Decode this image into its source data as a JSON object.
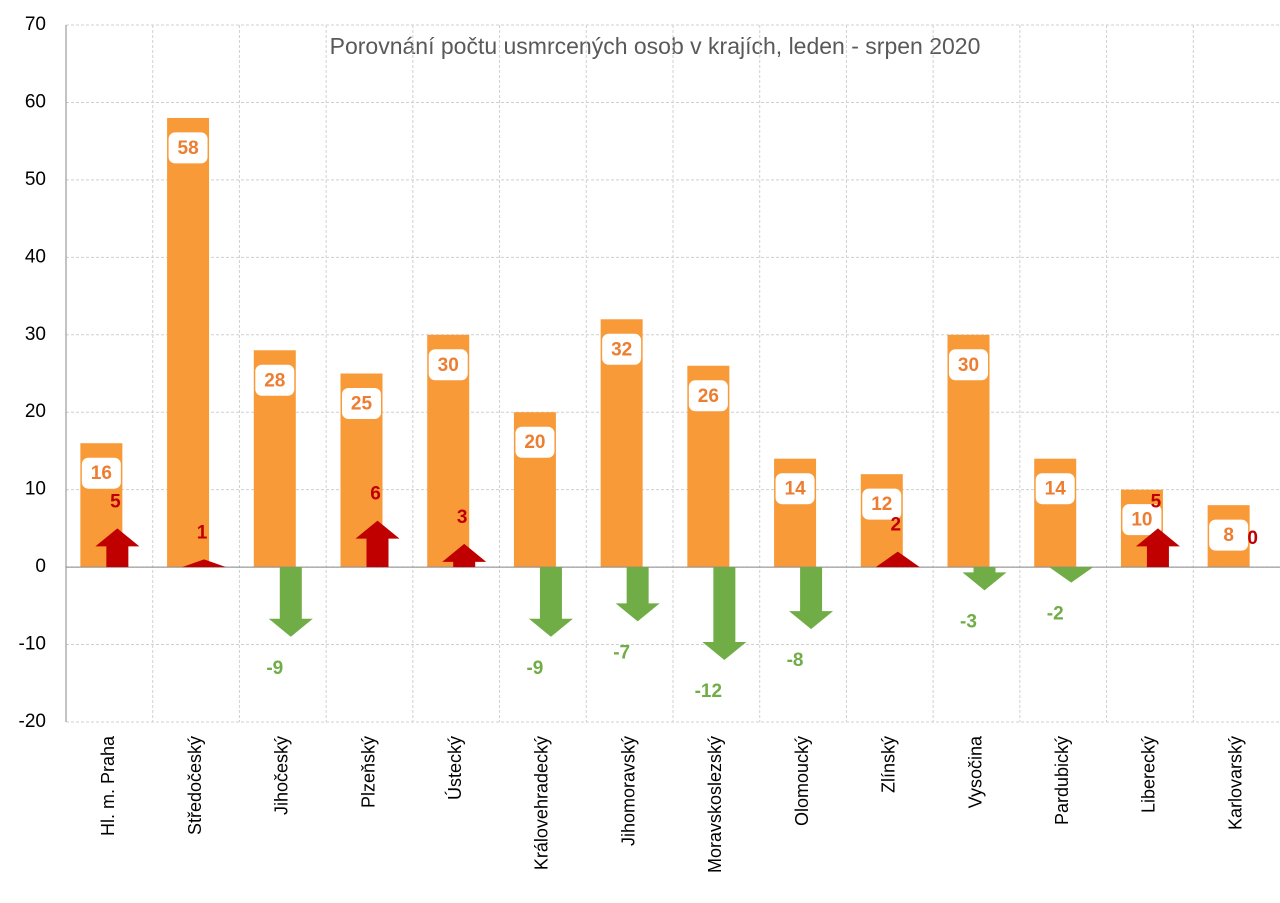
{
  "chart_data": {
    "type": "bar",
    "title": "Porovnání počtu usmrcených osob v krajích, leden - srpen 2020",
    "categories": [
      "Hl. m. Praha",
      "Středočeský",
      "Jihočeský",
      "Plzeňský",
      "Ústecký",
      "Královehradecký",
      "Jihomoravský",
      "Moravskoslezský",
      "Olomoucký",
      "Zlínský",
      "Vysočina",
      "Pardubický",
      "Liberecký",
      "Karlovarský"
    ],
    "series": [
      {
        "color": "#f99a38",
        "values": [
          16,
          58,
          28,
          25,
          30,
          20,
          32,
          26,
          14,
          12,
          30,
          14,
          10,
          8
        ]
      },
      {
        "type": "arrow",
        "color_positive": "#c00000",
        "color_negative": "#70ad47",
        "values": [
          5,
          1,
          -9,
          6,
          3,
          -9,
          -7,
          -12,
          -8,
          2,
          -3,
          -2,
          5,
          0
        ]
      }
    ],
    "ylim": [
      -20,
      70
    ],
    "yticks": [
      -20,
      -10,
      0,
      10,
      20,
      30,
      40,
      50,
      60,
      70
    ],
    "grid": true
  }
}
